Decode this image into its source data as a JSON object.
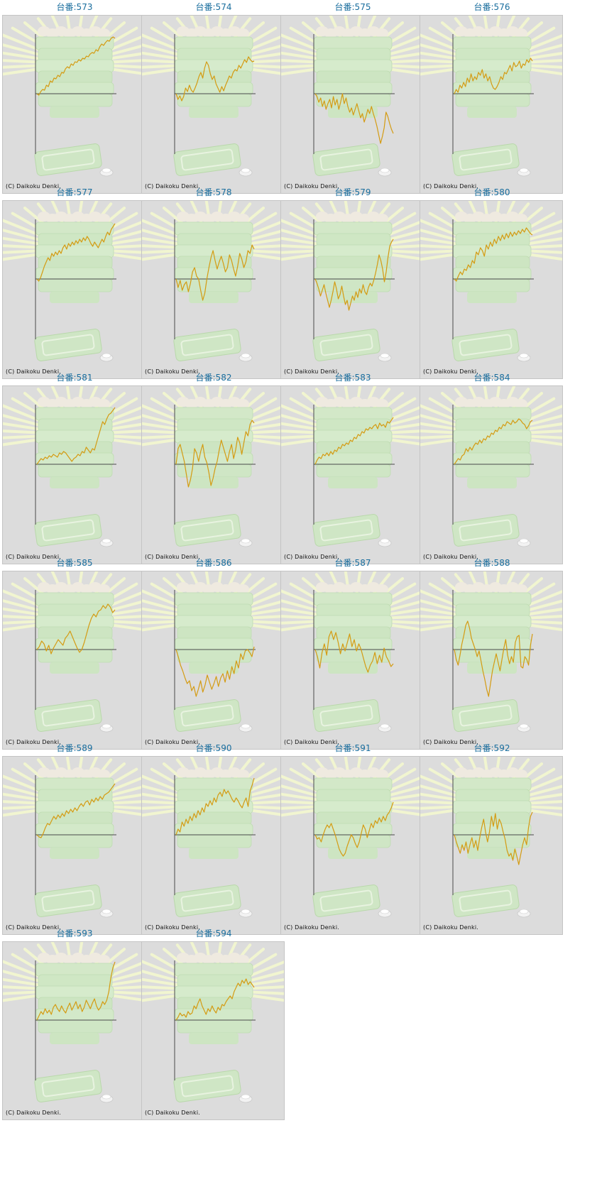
{
  "chart_data": [
    {
      "type": "line",
      "title": "台番:573",
      "copyright": "(C) Daikoku Denki.",
      "values": [
        0,
        -2,
        3,
        6,
        5,
        12,
        10,
        18,
        16,
        22,
        21,
        26,
        24,
        30,
        29,
        35,
        38,
        36,
        42,
        40,
        45,
        44,
        48,
        46,
        50,
        49,
        53,
        52,
        56,
        58,
        57,
        62,
        60,
        66,
        70,
        68,
        72,
        75,
        74,
        78,
        80,
        78
      ]
    },
    {
      "type": "line",
      "title": "台番:574",
      "copyright": "(C) Daikoku Denki.",
      "values": [
        0,
        -8,
        -3,
        -10,
        -4,
        8,
        3,
        12,
        5,
        2,
        8,
        15,
        24,
        30,
        22,
        36,
        45,
        40,
        28,
        20,
        25,
        14,
        8,
        2,
        10,
        4,
        12,
        18,
        25,
        22,
        30,
        34,
        32,
        40,
        36,
        42,
        48,
        44,
        52,
        48,
        45,
        46
      ]
    },
    {
      "type": "line",
      "title": "台番:575",
      "copyright": "(C) Daikoku Denki.",
      "values": [
        0,
        -4,
        -12,
        -6,
        -18,
        -10,
        -22,
        -14,
        -8,
        -20,
        -4,
        -16,
        -8,
        -22,
        -12,
        0,
        -14,
        -6,
        -18,
        -26,
        -20,
        -30,
        -22,
        -14,
        -24,
        -34,
        -28,
        -40,
        -32,
        -22,
        -28,
        -18,
        -28,
        -36,
        -46,
        -58,
        -70,
        -60,
        -48,
        -26,
        -32,
        -42,
        -50,
        -56
      ]
    },
    {
      "type": "line",
      "title": "台番:576",
      "copyright": "(C) Daikoku Denki.",
      "values": [
        0,
        6,
        2,
        12,
        8,
        16,
        10,
        22,
        16,
        28,
        18,
        24,
        20,
        30,
        26,
        34,
        22,
        28,
        18,
        24,
        14,
        8,
        6,
        10,
        16,
        24,
        20,
        30,
        28,
        34,
        40,
        32,
        44,
        38,
        40,
        46,
        36,
        42,
        40,
        48,
        44,
        50,
        46
      ]
    },
    {
      "type": "line",
      "title": "台番:577",
      "copyright": "(C) Daikoku Denki.",
      "values": [
        0,
        -3,
        2,
        10,
        18,
        24,
        30,
        26,
        36,
        32,
        38,
        34,
        40,
        36,
        44,
        48,
        42,
        50,
        46,
        52,
        48,
        54,
        50,
        56,
        52,
        58,
        54,
        60,
        56,
        50,
        46,
        52,
        48,
        44,
        50,
        56,
        52,
        60,
        66,
        62,
        70,
        74,
        78
      ]
    },
    {
      "type": "line",
      "title": "台番:578",
      "copyright": "(C) Daikoku Denki.",
      "values": [
        0,
        -12,
        -2,
        -16,
        -8,
        -4,
        -18,
        -6,
        10,
        16,
        4,
        0,
        -16,
        -30,
        -20,
        0,
        16,
        30,
        40,
        26,
        14,
        24,
        32,
        22,
        10,
        16,
        34,
        26,
        14,
        4,
        18,
        36,
        28,
        16,
        24,
        40,
        36,
        48,
        42
      ]
    },
    {
      "type": "line",
      "title": "台番:579",
      "copyright": "(C) Daikoku Denki.",
      "values": [
        0,
        -6,
        -14,
        -24,
        -16,
        -8,
        -20,
        -30,
        -40,
        -30,
        -18,
        -4,
        -14,
        -28,
        -22,
        -10,
        -24,
        -36,
        -30,
        -44,
        -34,
        -24,
        -30,
        -18,
        -26,
        -14,
        -20,
        -8,
        -18,
        -22,
        -12,
        -6,
        -10,
        -2,
        8,
        20,
        34,
        26,
        14,
        -4,
        10,
        30,
        46,
        52,
        56
      ]
    },
    {
      "type": "line",
      "title": "台番:580",
      "copyright": "(C) Daikoku Denki.",
      "values": [
        0,
        -3,
        4,
        10,
        6,
        14,
        12,
        20,
        16,
        26,
        22,
        38,
        34,
        44,
        40,
        32,
        48,
        42,
        52,
        46,
        56,
        50,
        60,
        54,
        62,
        56,
        64,
        58,
        66,
        60,
        66,
        62,
        68,
        64,
        70,
        66,
        72,
        68,
        64,
        62
      ]
    },
    {
      "type": "line",
      "title": "台番:581",
      "copyright": "(C) Daikoku Denki.",
      "values": [
        0,
        4,
        8,
        6,
        10,
        8,
        12,
        10,
        14,
        12,
        10,
        16,
        14,
        18,
        16,
        12,
        8,
        4,
        8,
        10,
        14,
        12,
        18,
        16,
        24,
        20,
        16,
        22,
        20,
        30,
        40,
        50,
        60,
        56,
        64,
        70,
        72,
        76,
        80
      ]
    },
    {
      "type": "line",
      "title": "台番:582",
      "copyright": "(C) Daikoku Denki.",
      "values": [
        0,
        22,
        28,
        16,
        4,
        -14,
        -32,
        -22,
        -6,
        22,
        16,
        4,
        18,
        28,
        10,
        2,
        -12,
        -30,
        -20,
        -6,
        4,
        20,
        34,
        24,
        14,
        4,
        18,
        28,
        8,
        20,
        38,
        30,
        14,
        30,
        46,
        40,
        56,
        62,
        58
      ]
    },
    {
      "type": "line",
      "title": "台番:583",
      "copyright": "(C) Daikoku Denki.",
      "values": [
        0,
        6,
        10,
        8,
        14,
        12,
        16,
        12,
        18,
        14,
        20,
        18,
        24,
        22,
        28,
        26,
        30,
        28,
        34,
        32,
        38,
        36,
        42,
        40,
        46,
        44,
        50,
        48,
        52,
        50,
        54,
        56,
        50,
        58,
        54,
        56,
        52,
        60,
        58,
        62,
        66
      ]
    },
    {
      "type": "line",
      "title": "台番:584",
      "copyright": "(C) Daikoku Denki.",
      "values": [
        0,
        4,
        8,
        6,
        12,
        14,
        22,
        18,
        24,
        20,
        26,
        30,
        28,
        34,
        30,
        36,
        34,
        40,
        38,
        44,
        42,
        48,
        46,
        52,
        50,
        56,
        54,
        60,
        58,
        56,
        62,
        58,
        60,
        64,
        62,
        58,
        56,
        50,
        54,
        60,
        62
      ]
    },
    {
      "type": "line",
      "title": "台番:585",
      "copyright": "(C) Daikoku Denki.",
      "values": [
        0,
        4,
        12,
        8,
        -2,
        6,
        -6,
        2,
        8,
        14,
        10,
        6,
        16,
        20,
        26,
        18,
        10,
        2,
        -4,
        0,
        10,
        22,
        34,
        44,
        50,
        46,
        54,
        56,
        62,
        58,
        64,
        60,
        52,
        56
      ]
    },
    {
      "type": "line",
      "title": "台番:586",
      "copyright": "(C) Daikoku Denki.",
      "values": [
        0,
        -10,
        -22,
        -30,
        -40,
        -48,
        -44,
        -58,
        -52,
        -66,
        -56,
        -44,
        -60,
        -50,
        -36,
        -46,
        -56,
        -48,
        -38,
        -52,
        -40,
        -34,
        -46,
        -30,
        -42,
        -24,
        -34,
        -16,
        -26,
        -6,
        -14,
        -2,
        0,
        -4,
        -10,
        4
      ]
    },
    {
      "type": "line",
      "title": "台番:587",
      "copyright": "(C) Daikoku Denki.",
      "values": [
        0,
        -10,
        -26,
        -4,
        8,
        -8,
        18,
        26,
        14,
        24,
        10,
        -6,
        8,
        -2,
        10,
        22,
        4,
        14,
        -2,
        8,
        0,
        -12,
        -24,
        -32,
        -22,
        -16,
        -4,
        -20,
        -8,
        -18,
        2,
        -10,
        -16,
        -24,
        -20
      ]
    },
    {
      "type": "line",
      "title": "台番:588",
      "copyright": "(C) Daikoku Denki.",
      "values": [
        0,
        -14,
        -22,
        -8,
        8,
        20,
        34,
        40,
        30,
        16,
        8,
        0,
        -10,
        -2,
        -16,
        -30,
        -42,
        -56,
        -66,
        -48,
        -30,
        -18,
        -6,
        -18,
        -30,
        -14,
        2,
        14,
        -8,
        -20,
        -10,
        -18,
        10,
        18,
        20,
        -24,
        -26,
        -10,
        -14,
        -22,
        6,
        22
      ]
    },
    {
      "type": "line",
      "title": "台番:589",
      "copyright": "(C) Daikoku Denki.",
      "values": [
        0,
        -3,
        -4,
        2,
        10,
        16,
        14,
        20,
        26,
        22,
        28,
        24,
        30,
        26,
        34,
        30,
        36,
        32,
        38,
        34,
        40,
        44,
        40,
        46,
        48,
        42,
        50,
        46,
        52,
        48,
        54,
        50,
        56,
        58,
        60,
        64,
        68,
        72
      ]
    },
    {
      "type": "line",
      "title": "台番:590",
      "copyright": "(C) Daikoku Denki.",
      "values": [
        0,
        8,
        4,
        18,
        12,
        22,
        16,
        26,
        20,
        30,
        24,
        34,
        28,
        38,
        32,
        44,
        40,
        48,
        42,
        52,
        46,
        56,
        60,
        54,
        64,
        58,
        62,
        56,
        50,
        46,
        52,
        48,
        42,
        38,
        46,
        52,
        40,
        62,
        70,
        80
      ]
    },
    {
      "type": "line",
      "title": "台番:591",
      "copyright": "(C) Daikoku Denki.",
      "values": [
        0,
        -6,
        -4,
        -10,
        0,
        8,
        14,
        10,
        16,
        8,
        0,
        -10,
        -20,
        -26,
        -30,
        -26,
        -16,
        -8,
        0,
        -4,
        -12,
        -18,
        -10,
        2,
        14,
        8,
        -4,
        6,
        16,
        10,
        20,
        16,
        24,
        18,
        26,
        20,
        28,
        32,
        38,
        46
      ]
    },
    {
      "type": "line",
      "title": "台番:592",
      "copyright": "(C) Daikoku Denki.",
      "values": [
        0,
        -10,
        -18,
        -26,
        -14,
        -22,
        -10,
        -26,
        -14,
        -4,
        -18,
        -8,
        -22,
        -4,
        10,
        22,
        4,
        -10,
        4,
        26,
        12,
        30,
        8,
        22,
        16,
        4,
        -6,
        -22,
        -30,
        -26,
        -36,
        -20,
        -30,
        -42,
        -28,
        -14,
        -4,
        -14,
        10,
        26,
        32
      ]
    },
    {
      "type": "line",
      "title": "台番:593",
      "copyright": "(C) Daikoku Denki.",
      "values": [
        0,
        6,
        12,
        8,
        16,
        10,
        14,
        8,
        18,
        22,
        16,
        12,
        20,
        14,
        10,
        18,
        24,
        14,
        20,
        26,
        16,
        22,
        12,
        18,
        28,
        22,
        16,
        24,
        30,
        20,
        14,
        18,
        26,
        22,
        28,
        40,
        60,
        74,
        82
      ]
    },
    {
      "type": "line",
      "title": "台番:594",
      "copyright": "(C) Daikoku Denki.",
      "values": [
        0,
        4,
        10,
        6,
        8,
        4,
        12,
        8,
        10,
        20,
        16,
        24,
        30,
        20,
        14,
        8,
        16,
        12,
        20,
        14,
        10,
        18,
        14,
        22,
        20,
        26,
        30,
        34,
        30,
        40,
        46,
        52,
        48,
        56,
        52,
        58,
        50,
        54,
        50,
        46
      ]
    }
  ]
}
